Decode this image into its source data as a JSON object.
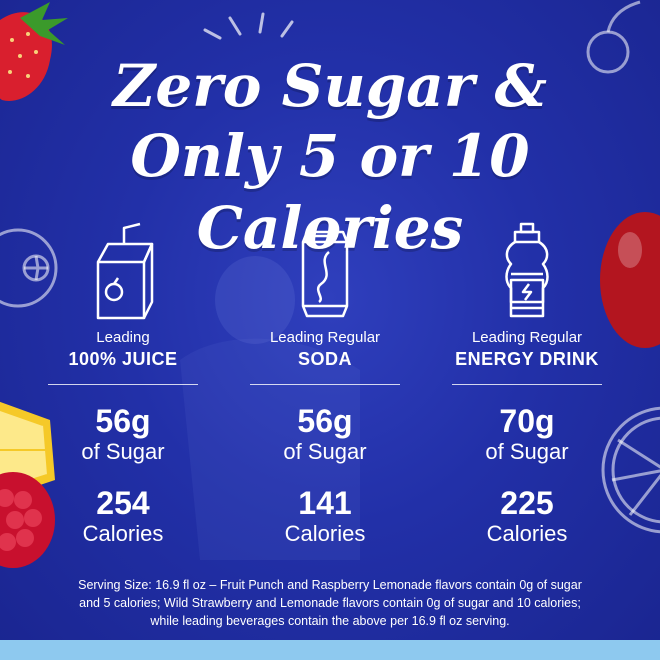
{
  "headline": {
    "line1": "Zero Sugar &",
    "line2": "Only 5 or 10 Calories"
  },
  "columns": [
    {
      "icon": "juice-box-icon",
      "sub": "Leading",
      "main": "100% JUICE",
      "sugar": "56g",
      "sugar_unit": "of Sugar",
      "calories": "254",
      "calories_unit": "Calories"
    },
    {
      "icon": "soda-can-icon",
      "sub": "Leading Regular",
      "main": "SODA",
      "sugar": "56g",
      "sugar_unit": "of Sugar",
      "calories": "141",
      "calories_unit": "Calories"
    },
    {
      "icon": "sports-bottle-icon",
      "sub": "Leading Regular",
      "main": "ENERGY DRINK",
      "sugar": "70g",
      "sugar_unit": "of Sugar",
      "calories": "225",
      "calories_unit": "Calories"
    }
  ],
  "footnote": {
    "line1": "Serving Size: 16.9 fl oz – Fruit Punch and Raspberry Lemonade flavors contain 0g of sugar",
    "line2": "and 5 calories; Wild Strawberry and Lemonade flavors contain 0g of sugar and 10 calories;",
    "line3": "while leading beverages contain the above per 16.9 fl oz serving."
  },
  "colors": {
    "background": "#2230a8",
    "text": "#ffffff",
    "bottom_bar": "#8ec9ef"
  }
}
